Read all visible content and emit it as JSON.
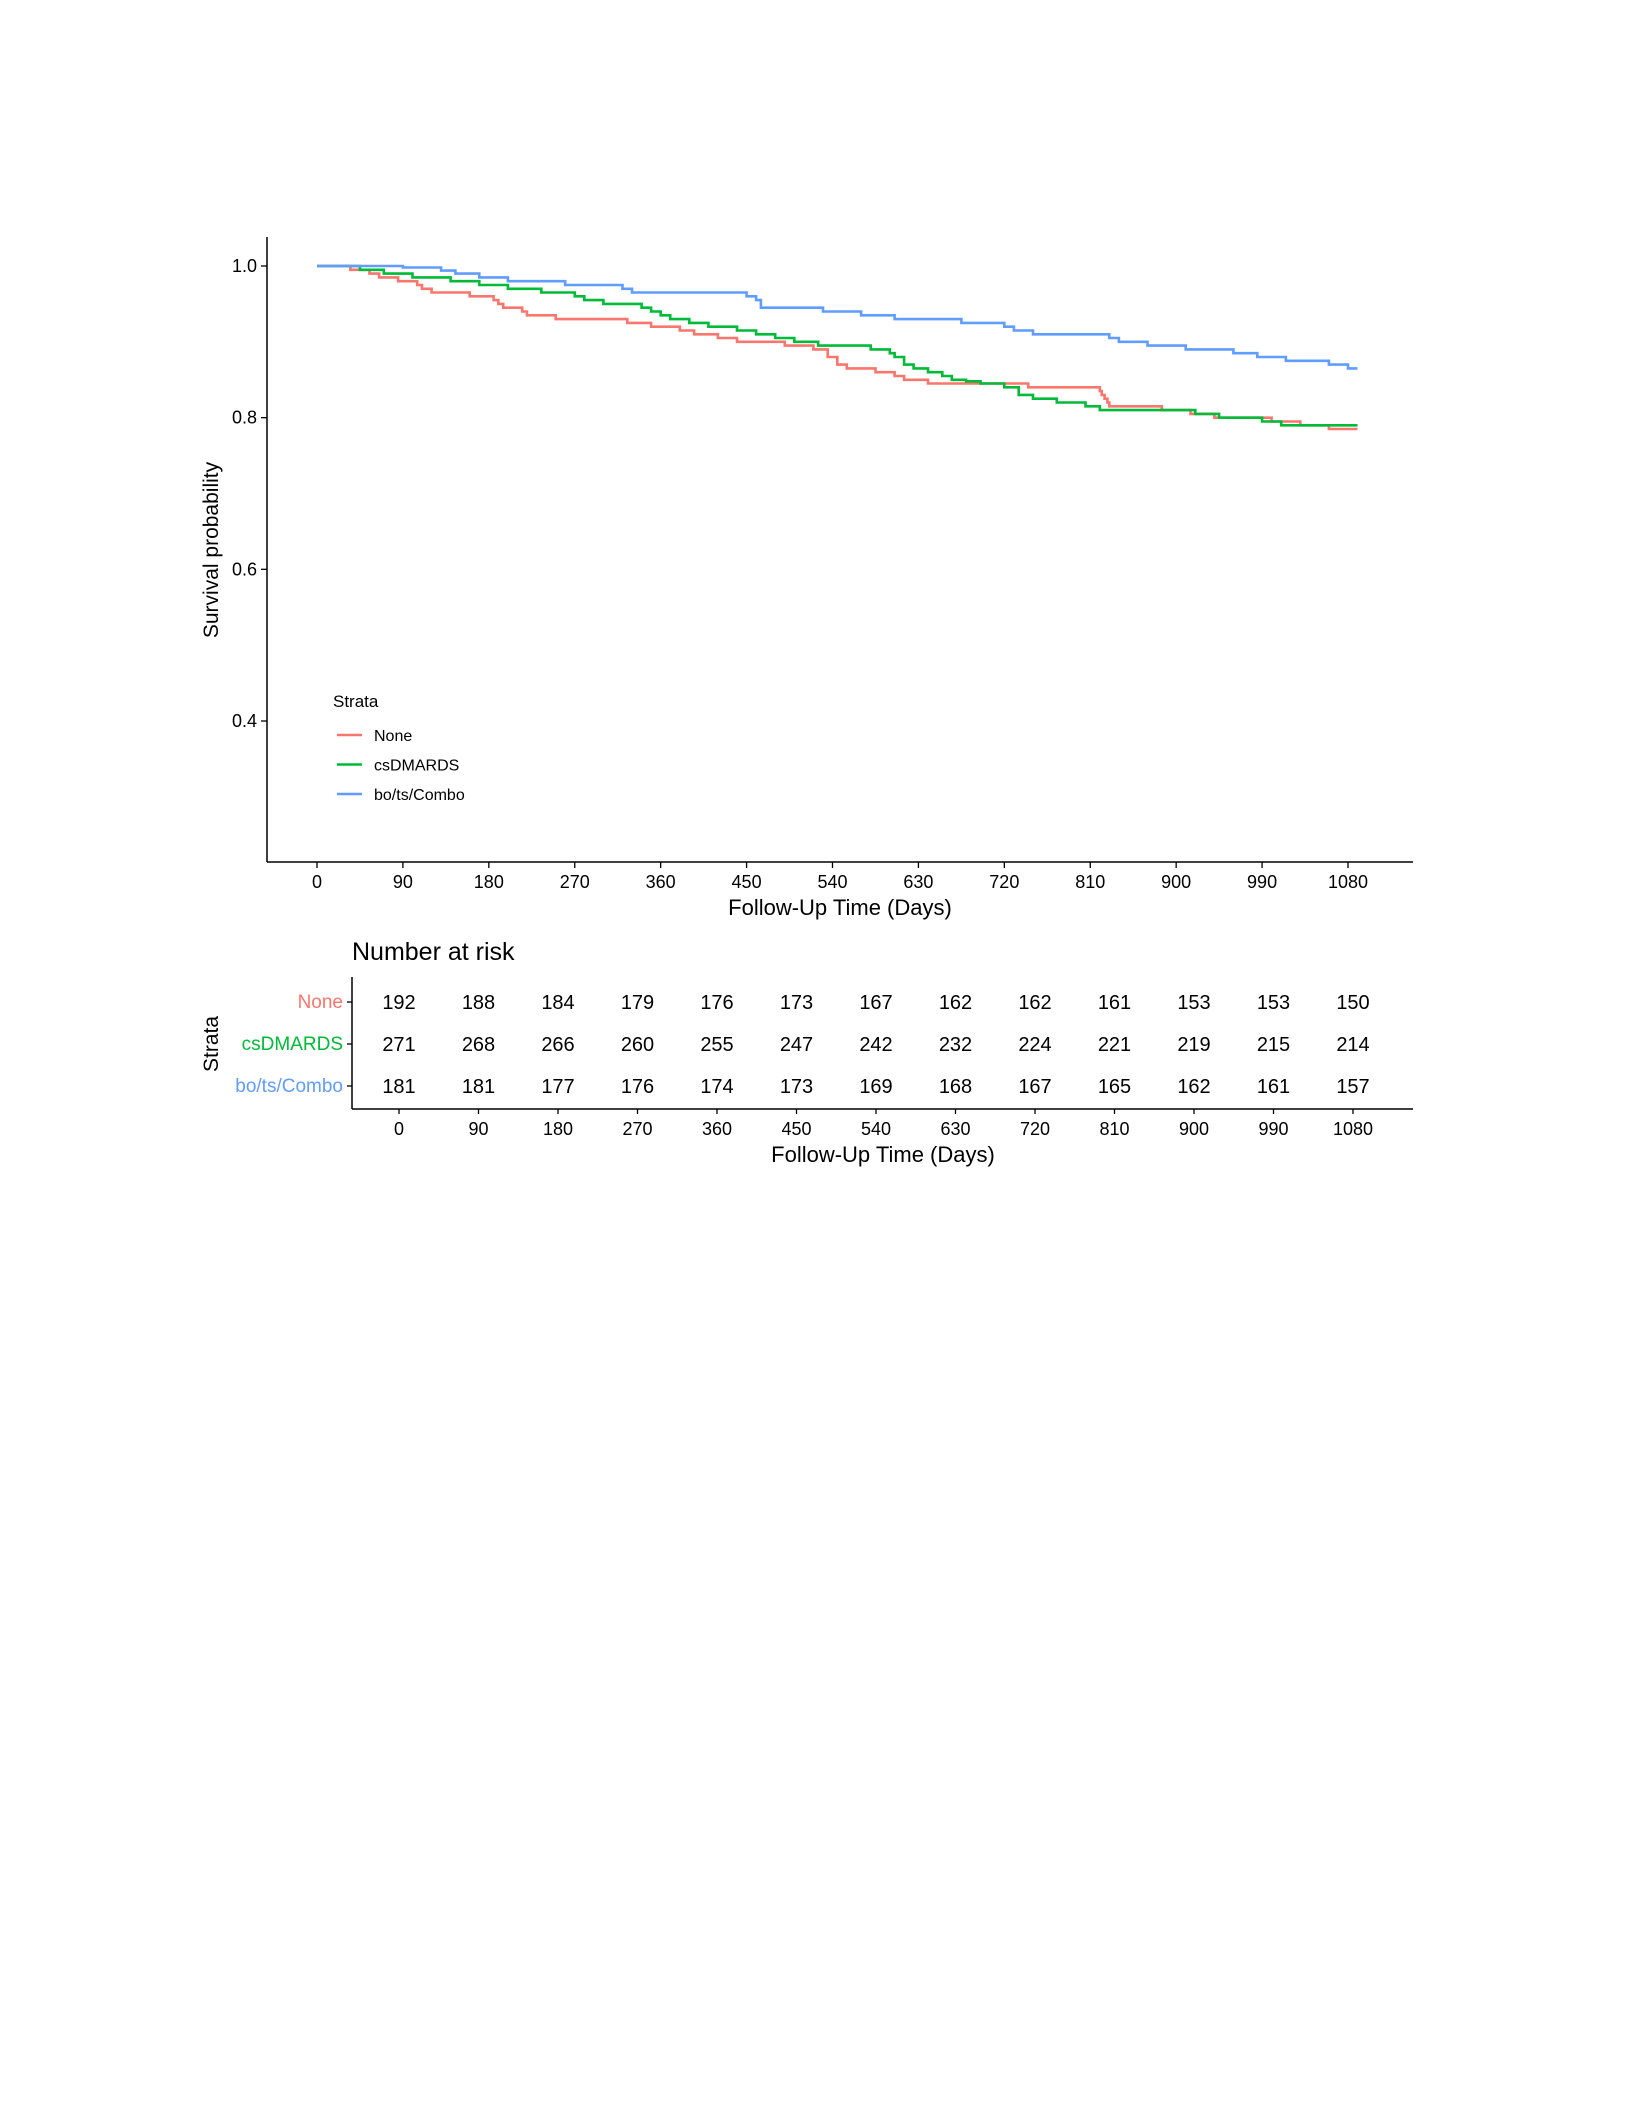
{
  "chart_data": [
    {
      "type": "line",
      "subtype": "kaplan-meier step curves",
      "title": "",
      "xlabel": "Follow-Up Time (Days)",
      "ylabel": "Survival probability",
      "xlim": [
        -58,
        1140
      ],
      "ylim": [
        0.215,
        1.035
      ],
      "xticks": [
        0,
        90,
        180,
        270,
        360,
        450,
        540,
        630,
        720,
        810,
        900,
        990,
        1080
      ],
      "yticks": [
        0.4,
        0.6,
        0.8,
        1.0
      ],
      "ytick_labels": [
        "0.4",
        "0.6",
        "0.8",
        "1.0"
      ],
      "grid": false,
      "legend": {
        "title": "Strata",
        "position": "bottom-left (inside plot)",
        "entries": [
          "None",
          "csDMARDS",
          "bo/ts/Combo"
        ]
      },
      "series": [
        {
          "name": "None",
          "color": "#F8766D",
          "points": [
            [
              0,
              1.0
            ],
            [
              30,
              1.0
            ],
            [
              35,
              0.995
            ],
            [
              55,
              0.99
            ],
            [
              65,
              0.985
            ],
            [
              85,
              0.98
            ],
            [
              105,
              0.975
            ],
            [
              110,
              0.97
            ],
            [
              120,
              0.965
            ],
            [
              160,
              0.96
            ],
            [
              185,
              0.955
            ],
            [
              190,
              0.95
            ],
            [
              195,
              0.945
            ],
            [
              215,
              0.94
            ],
            [
              220,
              0.935
            ],
            [
              250,
              0.93
            ],
            [
              300,
              0.93
            ],
            [
              325,
              0.925
            ],
            [
              350,
              0.92
            ],
            [
              380,
              0.915
            ],
            [
              395,
              0.91
            ],
            [
              420,
              0.905
            ],
            [
              440,
              0.9
            ],
            [
              475,
              0.9
            ],
            [
              490,
              0.895
            ],
            [
              520,
              0.89
            ],
            [
              535,
              0.88
            ],
            [
              545,
              0.87
            ],
            [
              555,
              0.865
            ],
            [
              585,
              0.86
            ],
            [
              605,
              0.855
            ],
            [
              615,
              0.85
            ],
            [
              640,
              0.845
            ],
            [
              695,
              0.845
            ],
            [
              745,
              0.84
            ],
            [
              810,
              0.84
            ],
            [
              820,
              0.835
            ],
            [
              822,
              0.83
            ],
            [
              825,
              0.825
            ],
            [
              828,
              0.82
            ],
            [
              830,
              0.815
            ],
            [
              885,
              0.81
            ],
            [
              915,
              0.805
            ],
            [
              940,
              0.8
            ],
            [
              1000,
              0.795
            ],
            [
              1030,
              0.79
            ],
            [
              1060,
              0.785
            ],
            [
              1090,
              0.785
            ]
          ]
        },
        {
          "name": "csDMARDS",
          "color": "#00BA38",
          "points": [
            [
              0,
              1.0
            ],
            [
              40,
              1.0
            ],
            [
              45,
              0.995
            ],
            [
              70,
              0.99
            ],
            [
              100,
              0.985
            ],
            [
              140,
              0.98
            ],
            [
              170,
              0.975
            ],
            [
              200,
              0.97
            ],
            [
              235,
              0.965
            ],
            [
              270,
              0.96
            ],
            [
              280,
              0.955
            ],
            [
              300,
              0.95
            ],
            [
              340,
              0.945
            ],
            [
              350,
              0.94
            ],
            [
              360,
              0.935
            ],
            [
              370,
              0.93
            ],
            [
              390,
              0.925
            ],
            [
              410,
              0.92
            ],
            [
              440,
              0.915
            ],
            [
              460,
              0.91
            ],
            [
              480,
              0.905
            ],
            [
              500,
              0.9
            ],
            [
              520,
              0.9
            ],
            [
              525,
              0.895
            ],
            [
              580,
              0.89
            ],
            [
              600,
              0.885
            ],
            [
              605,
              0.88
            ],
            [
              615,
              0.87
            ],
            [
              625,
              0.865
            ],
            [
              640,
              0.86
            ],
            [
              655,
              0.855
            ],
            [
              665,
              0.85
            ],
            [
              680,
              0.848
            ],
            [
              695,
              0.845
            ],
            [
              720,
              0.84
            ],
            [
              735,
              0.83
            ],
            [
              750,
              0.825
            ],
            [
              775,
              0.82
            ],
            [
              805,
              0.815
            ],
            [
              820,
              0.81
            ],
            [
              860,
              0.81
            ],
            [
              920,
              0.805
            ],
            [
              945,
              0.8
            ],
            [
              990,
              0.795
            ],
            [
              1010,
              0.79
            ],
            [
              1090,
              0.79
            ]
          ]
        },
        {
          "name": "bo/ts/Combo",
          "color": "#619CFF",
          "points": [
            [
              0,
              1.0
            ],
            [
              80,
              1.0
            ],
            [
              90,
              0.998
            ],
            [
              130,
              0.994
            ],
            [
              145,
              0.99
            ],
            [
              170,
              0.985
            ],
            [
              200,
              0.98
            ],
            [
              260,
              0.975
            ],
            [
              320,
              0.97
            ],
            [
              330,
              0.965
            ],
            [
              400,
              0.965
            ],
            [
              450,
              0.96
            ],
            [
              460,
              0.955
            ],
            [
              465,
              0.945
            ],
            [
              530,
              0.94
            ],
            [
              570,
              0.935
            ],
            [
              605,
              0.93
            ],
            [
              675,
              0.925
            ],
            [
              720,
              0.92
            ],
            [
              730,
              0.915
            ],
            [
              750,
              0.91
            ],
            [
              830,
              0.905
            ],
            [
              840,
              0.9
            ],
            [
              870,
              0.895
            ],
            [
              910,
              0.89
            ],
            [
              960,
              0.885
            ],
            [
              985,
              0.88
            ],
            [
              1015,
              0.875
            ],
            [
              1060,
              0.87
            ],
            [
              1080,
              0.865
            ],
            [
              1090,
              0.865
            ]
          ]
        }
      ]
    },
    {
      "type": "table",
      "title": "Number at risk",
      "ylabel": "Strata",
      "xlabel": "Follow-Up Time (Days)",
      "columns": [
        0,
        90,
        180,
        270,
        360,
        450,
        540,
        630,
        720,
        810,
        900,
        990,
        1080
      ],
      "rows": [
        {
          "name": "None",
          "color": "#F8766D",
          "values": [
            192,
            188,
            184,
            179,
            176,
            173,
            167,
            162,
            162,
            161,
            153,
            153,
            150
          ]
        },
        {
          "name": "csDMARDS",
          "color": "#00BA38",
          "values": [
            271,
            268,
            266,
            260,
            255,
            247,
            242,
            232,
            224,
            221,
            219,
            215,
            214
          ]
        },
        {
          "name": "bo/ts/Combo",
          "color": "#619CFF",
          "values": [
            181,
            181,
            177,
            176,
            174,
            173,
            169,
            168,
            167,
            165,
            162,
            161,
            157
          ]
        }
      ]
    }
  ]
}
